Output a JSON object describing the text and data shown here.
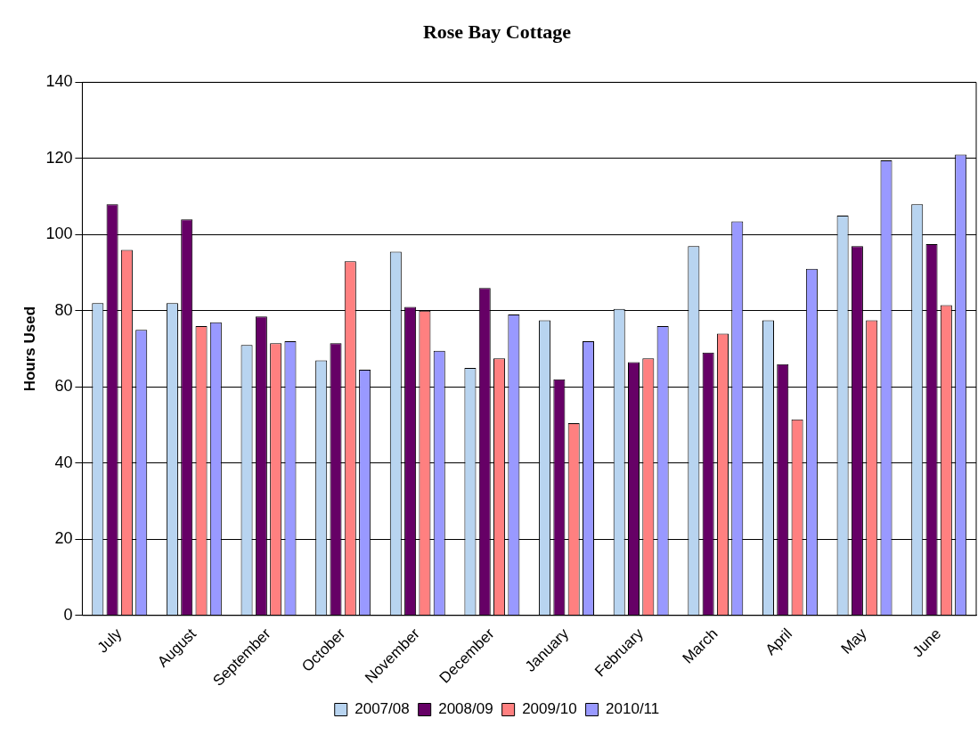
{
  "chart_data": {
    "type": "bar",
    "title": "Rose Bay Cottage",
    "ylabel": "Hours Used",
    "categories": [
      "July",
      "August",
      "September",
      "October",
      "November",
      "December",
      "January",
      "February",
      "March",
      "April",
      "May",
      "June"
    ],
    "series": [
      {
        "name": "2007/08",
        "color": "#b8d4f0",
        "values": [
          82,
          82,
          71,
          67,
          95.5,
          65,
          77.5,
          80.5,
          97,
          77.5,
          105,
          108
        ]
      },
      {
        "name": "2008/09",
        "color": "#660066",
        "values": [
          108,
          104,
          78.5,
          71.5,
          81,
          86,
          62,
          66.5,
          69,
          66,
          97,
          97.5
        ]
      },
      {
        "name": "2009/10",
        "color": "#ff8080",
        "values": [
          96,
          76,
          71.5,
          93,
          80,
          67.5,
          50.5,
          67.5,
          74,
          51.5,
          77.5,
          81.5
        ]
      },
      {
        "name": "2010/11",
        "color": "#9999ff",
        "values": [
          75,
          77,
          72,
          64.5,
          69.5,
          79,
          72,
          76,
          103.5,
          91,
          119.5,
          121
        ]
      }
    ],
    "ylim": [
      0,
      140
    ],
    "yticks": [
      0,
      20,
      40,
      60,
      80,
      100,
      120,
      140
    ],
    "grid": "y",
    "legend": "bottom"
  }
}
